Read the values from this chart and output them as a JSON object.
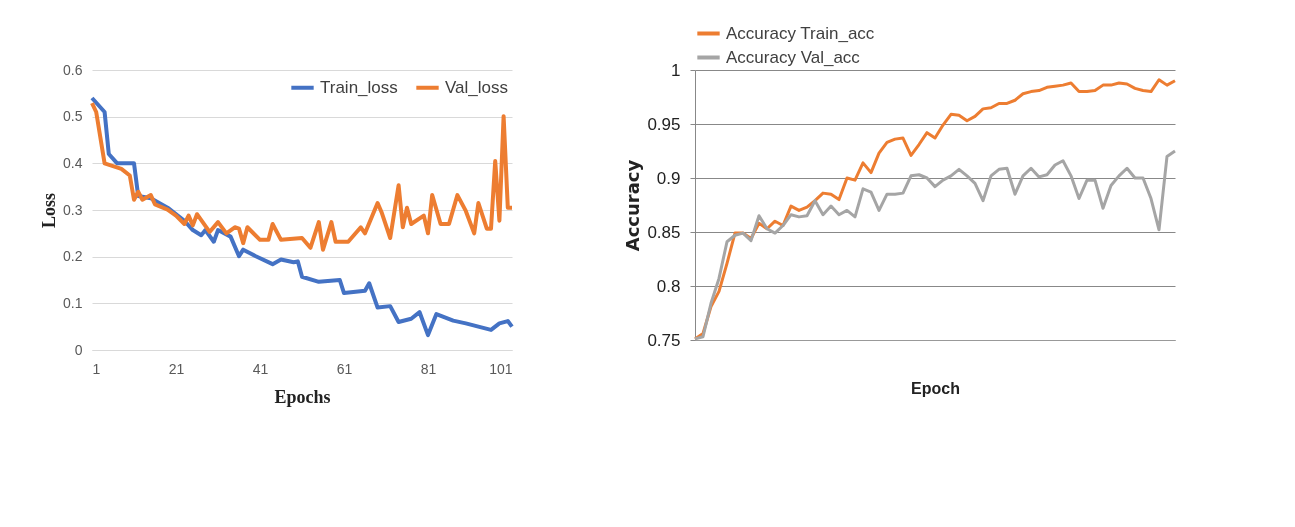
{
  "chart_data": [
    {
      "type": "line",
      "xlabel": "Epochs",
      "ylabel": "Loss",
      "xlim": [
        1,
        101
      ],
      "xticks": [
        1,
        21,
        41,
        61,
        81,
        101
      ],
      "ylim": [
        0,
        0.6
      ],
      "yticks": [
        0,
        0.1,
        0.2,
        0.3,
        0.4,
        0.5,
        0.6
      ],
      "grid": "y",
      "legend": "top right",
      "series": [
        {
          "name": "Train_loss",
          "color": "#4472c4",
          "x": [
            1,
            4,
            5,
            7,
            11,
            12,
            15,
            19,
            23,
            25,
            27,
            28,
            30,
            31,
            34,
            36,
            37,
            40,
            44,
            46,
            49,
            50,
            51,
            55,
            60,
            61,
            66,
            67,
            69,
            72,
            74,
            77,
            79,
            81,
            83,
            87,
            90,
            96,
            98,
            100,
            101
          ],
          "values": [
            0.54,
            0.51,
            0.42,
            0.4,
            0.4,
            0.33,
            0.325,
            0.305,
            0.277,
            0.257,
            0.246,
            0.257,
            0.232,
            0.257,
            0.243,
            0.201,
            0.215,
            0.201,
            0.184,
            0.194,
            0.188,
            0.19,
            0.157,
            0.146,
            0.15,
            0.122,
            0.127,
            0.143,
            0.091,
            0.094,
            0.06,
            0.067,
            0.081,
            0.032,
            0.077,
            0.063,
            0.057,
            0.043,
            0.057,
            0.062,
            0.05
          ]
        },
        {
          "name": "Val_loss",
          "color": "#ed7d31",
          "x": [
            1,
            2,
            4,
            8,
            10,
            11,
            12,
            13,
            15,
            16,
            19,
            21,
            23,
            24,
            25,
            26,
            29,
            31,
            33,
            35,
            36,
            37,
            38,
            41,
            43,
            44,
            46,
            51,
            53,
            55,
            56,
            58,
            59,
            62,
            65,
            66,
            69,
            70,
            72,
            74,
            75,
            76,
            77,
            80,
            81,
            82,
            84,
            86,
            88,
            90,
            92,
            93,
            95,
            96,
            97,
            98,
            99,
            100,
            101
          ],
          "values": [
            0.529,
            0.51,
            0.4,
            0.388,
            0.374,
            0.322,
            0.339,
            0.322,
            0.332,
            0.312,
            0.301,
            0.288,
            0.27,
            0.288,
            0.267,
            0.291,
            0.253,
            0.274,
            0.25,
            0.263,
            0.26,
            0.229,
            0.263,
            0.236,
            0.236,
            0.27,
            0.236,
            0.24,
            0.219,
            0.274,
            0.215,
            0.274,
            0.232,
            0.232,
            0.263,
            0.25,
            0.315,
            0.294,
            0.24,
            0.353,
            0.263,
            0.305,
            0.27,
            0.288,
            0.25,
            0.332,
            0.27,
            0.27,
            0.332,
            0.298,
            0.25,
            0.315,
            0.26,
            0.26,
            0.405,
            0.277,
            0.501,
            0.305,
            0.305
          ]
        }
      ]
    },
    {
      "type": "line",
      "xlabel": "Epoch",
      "ylabel": "Accuracy",
      "categories": [
        null,
        null,
        null,
        null,
        null,
        null,
        null,
        null,
        null,
        null,
        null,
        null,
        null,
        null,
        null,
        null,
        null,
        null,
        null,
        null,
        null,
        null,
        null,
        null,
        null,
        null,
        null,
        null,
        null,
        null,
        null,
        null,
        null,
        null,
        null,
        null,
        null,
        null,
        null,
        null,
        null,
        null,
        null,
        null,
        null,
        null,
        null,
        null,
        null,
        null,
        null,
        null,
        null,
        null,
        null,
        null,
        null,
        null,
        null,
        null,
        null
      ],
      "ylim": [
        0.75,
        1
      ],
      "yticks": [
        0.75,
        0.8,
        0.85,
        0.9,
        0.95,
        1
      ],
      "grid": "y",
      "legend": "top",
      "series": [
        {
          "name": "Accuracy Train_acc",
          "color": "#ed7d31",
          "values": [
            0.751,
            0.756,
            0.781,
            0.795,
            0.821,
            0.849,
            0.849,
            0.844,
            0.858,
            0.853,
            0.86,
            0.856,
            0.874,
            0.87,
            0.873,
            0.879,
            0.886,
            0.885,
            0.88,
            0.9,
            0.898,
            0.914,
            0.905,
            0.923,
            0.933,
            0.936,
            0.937,
            0.921,
            0.931,
            0.942,
            0.937,
            0.949,
            0.959,
            0.958,
            0.953,
            0.957,
            0.964,
            0.965,
            0.969,
            0.969,
            0.972,
            0.978,
            0.98,
            0.981,
            0.984,
            0.985,
            0.986,
            0.988,
            0.98,
            0.98,
            0.981,
            0.986,
            0.986,
            0.988,
            0.987,
            0.983,
            0.981,
            0.98,
            0.991,
            0.986,
            0.99
          ]
        },
        {
          "name": "Accuracy Val_acc",
          "color": "#a5a5a5",
          "values": [
            0.751,
            0.753,
            0.784,
            0.807,
            0.841,
            0.847,
            0.849,
            0.842,
            0.865,
            0.853,
            0.849,
            0.856,
            0.866,
            0.864,
            0.865,
            0.879,
            0.866,
            0.874,
            0.866,
            0.87,
            0.864,
            0.89,
            0.887,
            0.87,
            0.885,
            0.885,
            0.886,
            0.902,
            0.903,
            0.9,
            0.892,
            0.898,
            0.902,
            0.908,
            0.902,
            0.895,
            0.879,
            0.902,
            0.908,
            0.909,
            0.885,
            0.902,
            0.909,
            0.901,
            0.903,
            0.912,
            0.916,
            0.902,
            0.881,
            0.898,
            0.898,
            0.872,
            0.893,
            0.902,
            0.909,
            0.9,
            0.9,
            0.881,
            0.852,
            0.92,
            0.925
          ]
        }
      ]
    }
  ]
}
